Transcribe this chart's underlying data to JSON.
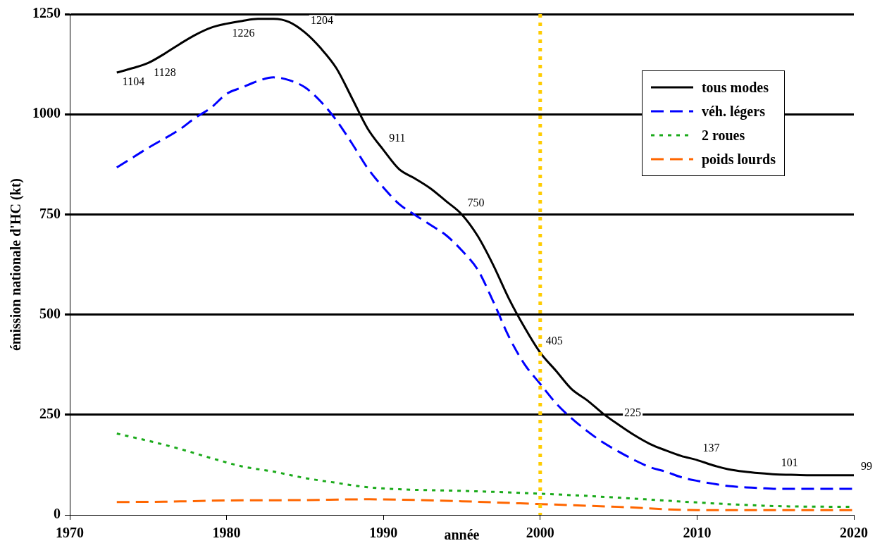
{
  "chart_data": {
    "type": "line",
    "xlabel": "année",
    "ylabel": "émission nationale d'HC (kt)",
    "xlim": [
      1970,
      2020
    ],
    "xticks": [
      1970,
      1980,
      1990,
      2000,
      2010,
      2020
    ],
    "ylim": [
      0,
      1250
    ],
    "yticks": [
      0,
      250,
      500,
      750,
      1000,
      1250
    ],
    "grid": "y",
    "legend": "top right",
    "marker": "none",
    "ref_lines": [
      {
        "axis": "x",
        "value": 2000,
        "color": "#ffcc00",
        "line_style": "dotted"
      }
    ],
    "series": [
      {
        "name": "tous modes",
        "color": "#000000",
        "line_style": "solid",
        "x": [
          1973,
          1974,
          1975,
          1976,
          1977,
          1978,
          1979,
          1980,
          1981,
          1982,
          1983,
          1984,
          1985,
          1986,
          1987,
          1988,
          1989,
          1990,
          1991,
          1992,
          1993,
          1994,
          1995,
          1996,
          1997,
          1998,
          1999,
          2000,
          2001,
          2002,
          2003,
          2004,
          2005,
          2006,
          2007,
          2008,
          2009,
          2010,
          2011,
          2012,
          2013,
          2014,
          2015,
          2016,
          2017,
          2018,
          2019,
          2020
        ],
        "values": [
          1104,
          1115,
          1128,
          1150,
          1175,
          1198,
          1216,
          1226,
          1233,
          1238,
          1238,
          1230,
          1204,
          1165,
          1115,
          1040,
          964,
          911,
          863,
          840,
          815,
          783,
          750,
          697,
          624,
          540,
          468,
          405,
          360,
          314,
          286,
          253,
          225,
          199,
          177,
          161,
          147,
          137,
          124,
          114,
          108,
          104,
          101,
          100,
          99,
          99,
          99,
          99
        ],
        "value_labels": [
          "1104",
          null,
          "1128",
          null,
          null,
          null,
          null,
          "1226",
          null,
          null,
          null,
          null,
          "1204",
          null,
          null,
          null,
          null,
          "911",
          null,
          null,
          null,
          null,
          "750",
          null,
          null,
          null,
          null,
          "405",
          null,
          null,
          null,
          null,
          "225",
          null,
          null,
          null,
          null,
          "137",
          null,
          null,
          null,
          null,
          "101",
          null,
          null,
          null,
          null,
          "99"
        ]
      },
      {
        "name": "véh. légers",
        "color": "#0000ff",
        "line_style": "dashed",
        "x": [
          1973,
          1975,
          1977,
          1978,
          1979,
          1980,
          1981,
          1982,
          1983,
          1984,
          1985,
          1986,
          1987,
          1988,
          1989,
          1990,
          1991,
          1992,
          1993,
          1994,
          1995,
          1996,
          1997,
          1998,
          1999,
          2000,
          2001,
          2002,
          2003,
          2004,
          2005,
          2006,
          2007,
          2008,
          2009,
          2010,
          2011,
          2012,
          2013,
          2014,
          2015,
          2020
        ],
        "values": [
          867,
          916,
          962,
          991,
          1016,
          1051,
          1067,
          1083,
          1092,
          1085,
          1067,
          1032,
          985,
          927,
          865,
          817,
          776,
          749,
          724,
          698,
          660,
          613,
          533,
          445,
          376,
          327,
          279,
          241,
          209,
          181,
          158,
          137,
          119,
          108,
          94,
          85,
          78,
          72,
          69,
          67,
          65,
          65
        ]
      },
      {
        "name": "2 roues",
        "color": "#1aaa1a",
        "line_style": "dotted",
        "x": [
          1973,
          1975,
          1977,
          1979,
          1981,
          1983,
          1985,
          1987,
          1989,
          1991,
          1995,
          2000,
          2005,
          2010,
          2015,
          2020
        ],
        "values": [
          203,
          185,
          165,
          142,
          121,
          108,
          92,
          80,
          69,
          64,
          60,
          53,
          43,
          31,
          22,
          20
        ]
      },
      {
        "name": "poids lourds",
        "color": "#ff6600",
        "line_style": "dashed",
        "x": [
          1973,
          1976,
          1980,
          1985,
          1989,
          1991,
          1995,
          2000,
          2005,
          2010,
          2015,
          2020
        ],
        "values": [
          32,
          33,
          36,
          37,
          39,
          38,
          34,
          27,
          20,
          12,
          12,
          12
        ]
      }
    ]
  }
}
